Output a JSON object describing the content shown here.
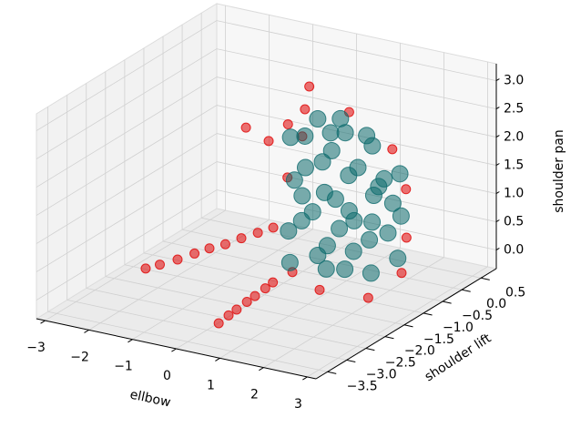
{
  "chart_data": {
    "type": "scatter3d",
    "x_label": "ellbow",
    "y_label": "shoulder lift",
    "z_label": "shoulder pan",
    "xlim": [
      -3.2,
      3.2
    ],
    "ylim": [
      -3.8,
      0.9
    ],
    "zlim": [
      -0.33,
      3.3
    ],
    "xticks": [
      {
        "value": -3,
        "label": "−3"
      },
      {
        "value": -2,
        "label": "−2"
      },
      {
        "value": -1,
        "label": "−1"
      },
      0,
      1,
      2,
      3
    ],
    "yticks": [
      {
        "value": -3.5,
        "label": "−3.5"
      },
      {
        "value": -3.0,
        "label": "−3.0"
      },
      {
        "value": -2.5,
        "label": "−2.5"
      },
      {
        "value": -2.0,
        "label": "−2.0"
      },
      {
        "value": -1.5,
        "label": "−1.5"
      },
      {
        "value": -1.0,
        "label": "−1.0"
      },
      {
        "value": -0.5,
        "label": "−0.5"
      },
      {
        "value": 0,
        "label": "0.0"
      },
      0.5
    ],
    "zticks": [
      {
        "value": 0,
        "label": "0.0"
      },
      0.5,
      {
        "value": 1,
        "label": "1.0"
      },
      1.5,
      {
        "value": 2,
        "label": "2.0"
      },
      2.5,
      {
        "value": 3,
        "label": "3.0"
      }
    ],
    "grid": true,
    "series": [
      {
        "color": "#e00000",
        "x": [
          -2.35,
          -2.0,
          -1.62,
          -1.25,
          -0.89,
          -0.5,
          -0.16,
          0.2,
          0.57,
          0.56,
          0.76,
          0.97,
          1.18,
          1.39,
          1.6,
          1.8,
          0.57,
          0.47,
          0.41,
          -0.88,
          -0.36,
          0.1,
          2.8,
          2.7,
          0.2,
          1.5,
          2.4,
          0.0,
          1.0,
          2.2,
          2.9
        ],
        "y": [
          -1.92,
          -1.95,
          -1.92,
          -1.9,
          -1.92,
          -1.95,
          -1.92,
          -1.9,
          -1.92,
          -3.33,
          -3.3,
          -3.33,
          -3.3,
          -3.33,
          -3.3,
          -3.33,
          -0.98,
          -0.98,
          -0.98,
          -0.98,
          -0.98,
          -1.0,
          -1.0,
          -1.0,
          -1.0,
          -1.0,
          -0.9,
          -0.9,
          -1.2,
          -1.3,
          -1.1
        ],
        "z": [
          -0.08,
          0.06,
          0.2,
          0.36,
          0.52,
          0.67,
          0.82,
          0.97,
          1.13,
          0.02,
          0.18,
          0.33,
          0.49,
          0.64,
          0.8,
          0.95,
          3.24,
          2.82,
          2.33,
          2.27,
          2.12,
          2.5,
          1.8,
          0.3,
          -0.1,
          2.95,
          2.4,
          1.5,
          -0.2,
          -0.1,
          1.0
        ]
      },
      {
        "color": "#0f6b6e",
        "x": [
          0.16,
          0.16,
          0.2,
          0.1,
          0.78,
          0.8,
          0.75,
          0.78,
          0.8,
          1.41,
          1.4,
          1.45,
          1.4,
          2.03,
          2.0,
          2.05,
          2.0,
          2.66,
          2.6,
          2.7,
          0.5,
          1.1,
          1.1,
          1.7,
          1.7,
          2.3,
          2.3,
          0.5,
          1.0,
          1.6,
          2.2,
          0.9,
          1.3,
          1.9,
          0.4,
          2.5,
          1.2,
          0.6,
          1.8,
          1.5
        ],
        "y": [
          -1.0,
          -0.9,
          -1.1,
          -0.95,
          -1.0,
          -0.9,
          -1.1,
          -1.0,
          -0.8,
          -1.0,
          -0.9,
          -1.2,
          -1.0,
          -1.0,
          -0.8,
          -1.1,
          -1.0,
          -1.0,
          -0.9,
          -1.1,
          -1.0,
          -1.0,
          -0.9,
          -1.0,
          -1.1,
          -1.0,
          -0.9,
          -1.1,
          -1.0,
          -1.0,
          -1.2,
          -0.8,
          -1.0,
          -1.0,
          -0.9,
          -1.0,
          -1.3,
          -1.2,
          -0.7,
          -1.0
        ],
        "z": [
          2.28,
          1.48,
          0.67,
          0.03,
          2.71,
          1.91,
          1.1,
          0.29,
          -0.03,
          2.57,
          1.77,
          0.96,
          0.15,
          2.44,
          1.63,
          0.82,
          0.18,
          2.05,
          1.25,
          0.6,
          1.8,
          2.2,
          1.3,
          2.0,
          1.1,
          1.9,
          0.9,
          0.9,
          0.5,
          0.5,
          1.2,
          2.4,
          2.8,
          2.6,
          2.3,
          1.5,
          1.6,
          1.4,
          1.4,
          1.2
        ]
      }
    ]
  }
}
